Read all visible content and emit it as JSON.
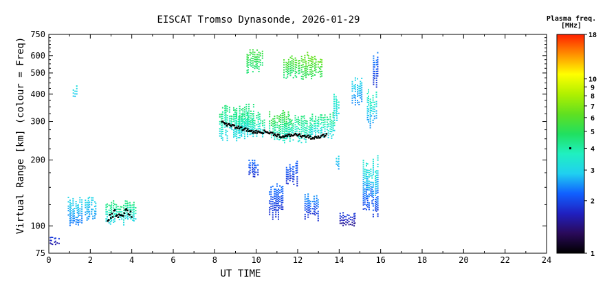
{
  "chart_data": {
    "type": "scatter",
    "title": "EISCAT Tromso Dynasonde, 2026-01-29",
    "xlabel": "UT TIME",
    "ylabel": "Virtual Range [km] (colour = Freq)",
    "x_ticks": [
      "0",
      "2",
      "4",
      "6",
      "8",
      "10",
      "12",
      "14",
      "16",
      "18",
      "20",
      "22",
      "24"
    ],
    "y_ticks": [
      "75",
      "100",
      "200",
      "300",
      "400",
      "500",
      "600",
      "750"
    ],
    "xlim": [
      0,
      24
    ],
    "ylim": [
      75,
      750
    ],
    "yscale": "log",
    "grid": false,
    "colorbar": {
      "title_line1": "Plasma freq.",
      "title_line2": "[MHz]",
      "scale": "log",
      "range": [
        1,
        18
      ],
      "ticks": [
        "1",
        "2",
        "3",
        "4",
        "5",
        "6",
        "7",
        "8",
        "9",
        "10",
        "18"
      ],
      "marker_value": 4,
      "colors": [
        "#000000",
        "#2a0a5a",
        "#2020c0",
        "#1060ff",
        "#20d0f0",
        "#20f0c0",
        "#20e060",
        "#60e020",
        "#b0f000",
        "#ffff00",
        "#ff9000",
        "#ff2000"
      ]
    },
    "series": [
      {
        "type": "echo-cluster",
        "x": [
          0.0,
          0.5
        ],
        "y": [
          82,
          90
        ],
        "f": [
          1.6,
          1.9
        ]
      },
      {
        "type": "echo-cluster",
        "x": [
          0.9,
          1.6
        ],
        "y": [
          100,
          135
        ],
        "f": [
          2.3,
          3.0
        ]
      },
      {
        "type": "echo-cluster",
        "x": [
          1.15,
          1.35
        ],
        "y": [
          390,
          440
        ],
        "f": [
          2.8,
          3.2
        ]
      },
      {
        "type": "echo-cluster",
        "x": [
          1.7,
          2.3
        ],
        "y": [
          105,
          135
        ],
        "f": [
          2.5,
          3.0
        ]
      },
      {
        "type": "echo-cluster",
        "x": [
          2.7,
          4.2
        ],
        "y": [
          100,
          130
        ],
        "f": [
          3.0,
          4.5
        ]
      },
      {
        "type": "echo-cluster",
        "x": [
          8.2,
          9.9
        ],
        "y": [
          245,
          360
        ],
        "f": [
          3.0,
          4.6
        ]
      },
      {
        "type": "echo-cluster",
        "x": [
          9.0,
          10.4
        ],
        "y": [
          250,
          330
        ],
        "f": [
          3.0,
          4.5
        ]
      },
      {
        "type": "echo-cluster",
        "x": [
          9.5,
          10.3
        ],
        "y": [
          500,
          640
        ],
        "f": [
          4.5,
          5.5
        ]
      },
      {
        "type": "echo-cluster",
        "x": [
          9.6,
          10.1
        ],
        "y": [
          165,
          200
        ],
        "f": [
          1.8,
          2.3
        ]
      },
      {
        "type": "echo-cluster",
        "x": [
          10.6,
          11.7
        ],
        "y": [
          240,
          340
        ],
        "f": [
          3.5,
          5.5
        ]
      },
      {
        "type": "echo-cluster",
        "x": [
          11.3,
          12.7
        ],
        "y": [
          240,
          320
        ],
        "f": [
          3.3,
          4.5
        ]
      },
      {
        "type": "echo-cluster",
        "x": [
          11.3,
          12.2
        ],
        "y": [
          470,
          600
        ],
        "f": [
          4.5,
          6.0
        ]
      },
      {
        "type": "echo-cluster",
        "x": [
          12.2,
          13.2
        ],
        "y": [
          460,
          620
        ],
        "f": [
          5.0,
          6.5
        ]
      },
      {
        "type": "echo-cluster",
        "x": [
          12.6,
          13.8
        ],
        "y": [
          250,
          330
        ],
        "f": [
          3.0,
          4.5
        ]
      },
      {
        "type": "echo-cluster",
        "x": [
          13.7,
          14.0
        ],
        "y": [
          300,
          400
        ],
        "f": [
          3.0,
          3.6
        ]
      },
      {
        "type": "echo-cluster",
        "x": [
          10.6,
          11.3
        ],
        "y": [
          105,
          160
        ],
        "f": [
          1.8,
          2.3
        ]
      },
      {
        "type": "echo-cluster",
        "x": [
          11.4,
          12.0
        ],
        "y": [
          150,
          200
        ],
        "f": [
          1.8,
          2.2
        ]
      },
      {
        "type": "echo-cluster",
        "x": [
          12.3,
          13.0
        ],
        "y": [
          105,
          140
        ],
        "f": [
          1.8,
          2.5
        ]
      },
      {
        "type": "echo-cluster",
        "x": [
          13.8,
          14.0
        ],
        "y": [
          180,
          215
        ],
        "f": [
          2.5,
          3.0
        ]
      },
      {
        "type": "echo-cluster",
        "x": [
          14.0,
          14.8
        ],
        "y": [
          100,
          115
        ],
        "f": [
          1.5,
          1.9
        ]
      },
      {
        "type": "echo-cluster",
        "x": [
          14.6,
          15.1
        ],
        "y": [
          350,
          480
        ],
        "f": [
          2.4,
          3.0
        ]
      },
      {
        "type": "echo-cluster",
        "x": [
          15.1,
          15.9
        ],
        "y": [
          110,
          215
        ],
        "f": [
          1.9,
          3.5
        ]
      },
      {
        "type": "echo-cluster",
        "x": [
          15.3,
          15.8
        ],
        "y": [
          280,
          420
        ],
        "f": [
          2.5,
          3.8
        ]
      },
      {
        "type": "echo-cluster",
        "x": [
          15.6,
          15.9
        ],
        "y": [
          430,
          620
        ],
        "f": [
          1.8,
          2.4
        ]
      }
    ],
    "trace_x": [
      8.3,
      8.6,
      8.9,
      9.2,
      9.5,
      9.8,
      10.1,
      10.4,
      10.7,
      11.0,
      11.3,
      11.6,
      11.9,
      12.2,
      12.5,
      12.8,
      13.1,
      13.4
    ],
    "trace_y": [
      300,
      290,
      285,
      280,
      275,
      270,
      268,
      270,
      265,
      260,
      255,
      260,
      262,
      258,
      255,
      252,
      256,
      262
    ],
    "trace_low_x": [
      2.8,
      3.1,
      3.4,
      3.7,
      4.0
    ],
    "trace_low_y": [
      108,
      115,
      112,
      118,
      112
    ]
  }
}
